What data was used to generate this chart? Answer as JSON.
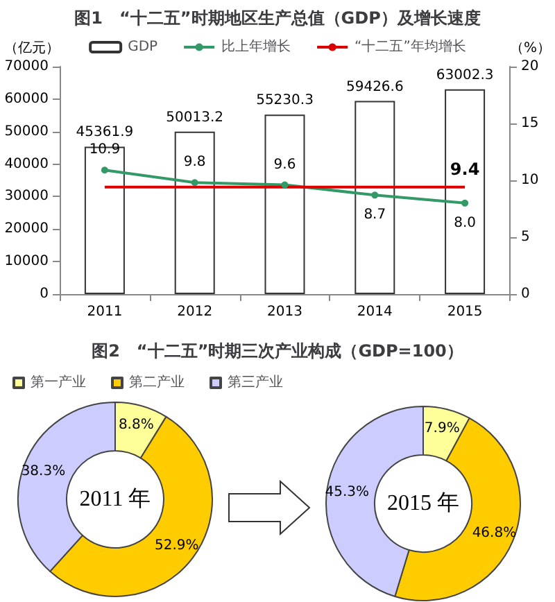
{
  "chart_data": [
    {
      "type": "bar",
      "title": "图1　“十二五”时期地区生产总值（GDP）及增长速度",
      "ylabel": "（亿元）",
      "y2label": "（%）",
      "categories": [
        "2011",
        "2012",
        "2013",
        "2014",
        "2015"
      ],
      "ylim": [
        0,
        70000
      ],
      "yticks": [
        0,
        10000,
        20000,
        30000,
        40000,
        50000,
        60000,
        70000
      ],
      "y2lim": [
        0,
        20
      ],
      "y2ticks": [
        0,
        5,
        10,
        15,
        20
      ],
      "legend": "top",
      "grid": false,
      "marker": "circle",
      "series": [
        {
          "name": "GDP",
          "type": "bar",
          "color": "#ffffff",
          "values": [
            45361.9,
            50013.2,
            55230.3,
            59426.6,
            63002.3
          ],
          "value_labels": [
            "45361.9",
            "50013.2",
            "55230.3",
            "59426.6",
            "63002.3"
          ]
        },
        {
          "name": "比上年增长",
          "type": "line",
          "axis": "y2",
          "color": "#339966",
          "values": [
            10.9,
            9.8,
            9.6,
            8.7,
            8.0
          ],
          "value_labels": [
            "10.9",
            "9.8",
            "9.6",
            "8.7",
            "8.0"
          ]
        },
        {
          "name": "“十二五”年均增长",
          "type": "line",
          "axis": "y2",
          "marker": "none",
          "color": "#dd0000",
          "values": [
            9.4,
            9.4,
            9.4,
            9.4,
            9.4
          ],
          "value_labels": [
            null,
            null,
            null,
            null,
            "9.4"
          ]
        }
      ]
    },
    {
      "type": "donut",
      "title": "图2　“十二五”时期三次产业构成（GDP=100）",
      "legend": "top left",
      "categories": [
        "第一产业",
        "第二产业",
        "第三产业"
      ],
      "colors": [
        "#ffff99",
        "#ffcc00",
        "#ccccff"
      ],
      "annotations": [
        "2011 年",
        "2015 年"
      ],
      "series": [
        {
          "values": [
            8.8,
            52.9,
            38.3
          ],
          "value_labels": [
            "8.8%",
            "52.9%",
            "38.3%"
          ]
        },
        {
          "values": [
            7.9,
            46.8,
            45.3
          ],
          "value_labels": [
            "7.9%",
            "46.8%",
            "45.3%"
          ]
        }
      ]
    }
  ]
}
